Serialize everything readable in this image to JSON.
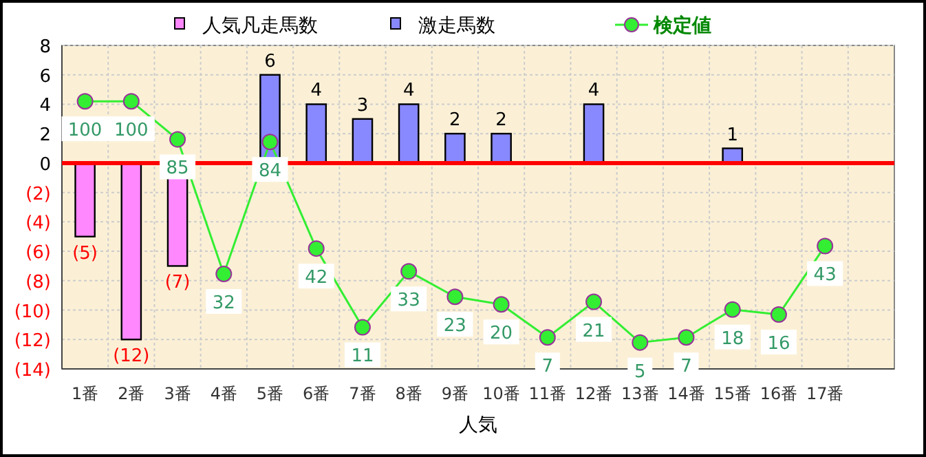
{
  "chart_data": {
    "type": "bar",
    "xlabel": "人気",
    "categories": [
      "1番",
      "2番",
      "3番",
      "4番",
      "5番",
      "6番",
      "7番",
      "8番",
      "9番",
      "10番",
      "11番",
      "12番",
      "13番",
      "14番",
      "15番",
      "16番",
      "17番",
      null
    ],
    "stacked": true,
    "legend": "top",
    "grid": true,
    "ylim": [
      -14,
      8
    ],
    "yticks": [
      8,
      6,
      4,
      2,
      0,
      {
        "value": -2,
        "label": "(2)"
      },
      {
        "value": -4,
        "label": "(4)"
      },
      {
        "value": -6,
        "label": "(6)"
      },
      {
        "value": -8,
        "label": "(8)"
      },
      {
        "value": -10,
        "label": "(10)"
      },
      {
        "value": -12,
        "label": "(12)"
      },
      {
        "value": -14,
        "label": "(14)"
      }
    ],
    "y2lim": [
      -5.4,
      122
    ],
    "ref_lines": [
      {
        "axis": "y",
        "value": 0,
        "color": "#ff0000"
      }
    ],
    "series": [
      {
        "name": "人気凡走馬数",
        "color": "#ff88ff",
        "values": [
          -5,
          -12,
          -7,
          null,
          null,
          null,
          null,
          null,
          null,
          null,
          null,
          null,
          null,
          null,
          null,
          null,
          null,
          null
        ],
        "value_labels": [
          "(5)",
          "(12)",
          "(7)",
          null,
          null,
          null,
          null,
          null,
          null,
          null,
          null,
          null,
          null,
          null,
          null,
          null,
          null,
          null
        ]
      },
      {
        "name": "激走馬数",
        "color": "#8888ff",
        "values": [
          null,
          null,
          null,
          null,
          6,
          4,
          3,
          4,
          2,
          2,
          null,
          4,
          null,
          null,
          1,
          null,
          null,
          null
        ],
        "value_labels": [
          null,
          null,
          null,
          null,
          "6",
          "4",
          "3",
          "4",
          "2",
          "2",
          null,
          "4",
          null,
          null,
          "1",
          null,
          null,
          null
        ]
      },
      {
        "name": "検定値",
        "type": "line",
        "axis": "y2",
        "marker": "circle",
        "color": "#33ee33",
        "values": [
          100,
          100,
          85,
          32,
          84,
          42,
          11,
          33,
          23,
          20,
          7,
          21,
          5,
          7,
          18,
          16,
          43,
          null
        ],
        "value_labels": [
          "100",
          "100",
          "85",
          "32",
          "84",
          "42",
          "11",
          "33",
          "23",
          "20",
          "7",
          "21",
          "5",
          "7",
          "18",
          "16",
          "43",
          null
        ]
      }
    ]
  }
}
